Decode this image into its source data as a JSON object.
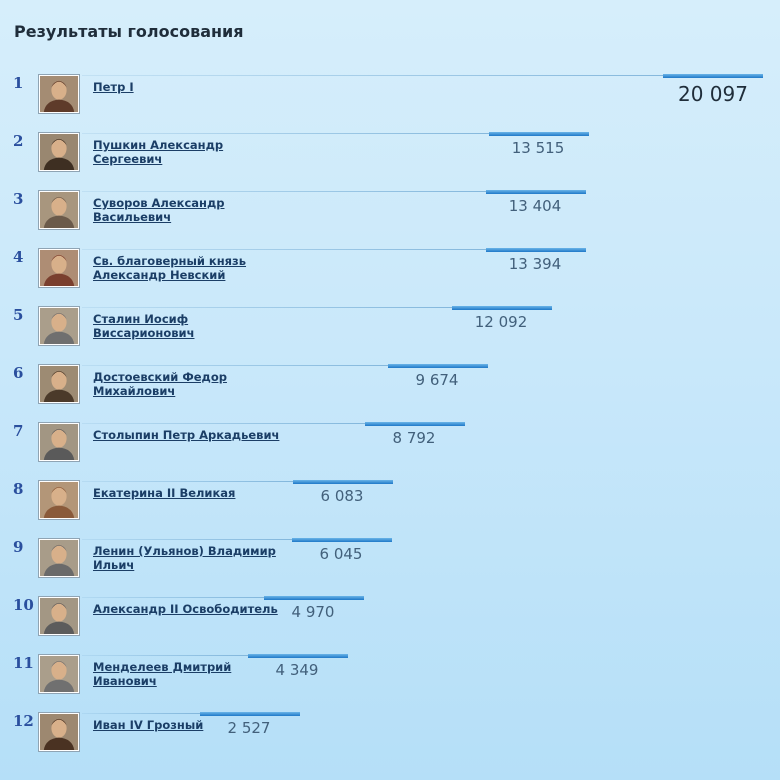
{
  "page": {
    "title": "Результаты голосования"
  },
  "candidates": [
    {
      "rank": "1",
      "name": "Петр I",
      "votes": "20 097"
    },
    {
      "rank": "2",
      "name": "Пушкин Александр Сергеевич",
      "votes": "13 515"
    },
    {
      "rank": "3",
      "name": "Суворов Александр Васильевич",
      "votes": "13 404"
    },
    {
      "rank": "4",
      "name": "Св. благоверный князь Александр Невский",
      "votes": "13 394"
    },
    {
      "rank": "5",
      "name": "Сталин Иосиф Виссарионович",
      "votes": "12 092"
    },
    {
      "rank": "6",
      "name": "Достоевский Федор Михайлович",
      "votes": "9 674"
    },
    {
      "rank": "7",
      "name": "Столыпин Петр Аркадьевич",
      "votes": "8 792"
    },
    {
      "rank": "8",
      "name": "Екатерина II Великая",
      "votes": "6 083"
    },
    {
      "rank": "9",
      "name": "Ленин (Ульянов) Владимир Ильич",
      "votes": "6 045"
    },
    {
      "rank": "10",
      "name": "Александр II Освободитель",
      "votes": "4 970"
    },
    {
      "rank": "11",
      "name": "Менделеев Дмитрий Иванович",
      "votes": "4 349"
    },
    {
      "rank": "12",
      "name": "Иван IV Грозный",
      "votes": "2 527"
    }
  ],
  "colors": {
    "bar": "#1f78c8",
    "rank": "#2a4f9e",
    "link": "#1b3e66"
  },
  "icons": {
    "portrait": "portrait-icon"
  }
}
